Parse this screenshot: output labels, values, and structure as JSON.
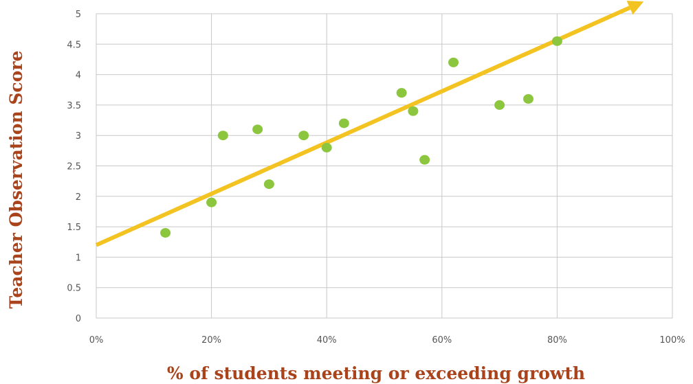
{
  "chart_data": {
    "type": "scatter",
    "title": "",
    "xlabel": "% of students meeting or exceeding growth",
    "ylabel": "Teacher Observation Score",
    "xlim": [
      0,
      100
    ],
    "ylim": [
      0,
      5
    ],
    "x_ticks": [
      0,
      20,
      40,
      60,
      80,
      100
    ],
    "x_tick_labels": [
      "0%",
      "20%",
      "40%",
      "60%",
      "80%",
      "100%"
    ],
    "y_ticks": [
      0,
      0.5,
      1,
      1.5,
      2,
      2.5,
      3,
      3.5,
      4,
      4.5,
      5
    ],
    "y_tick_labels": [
      "0",
      "0.5",
      "1",
      "1.5",
      "2",
      "2.5",
      "3",
      "3.5",
      "4",
      "4.5",
      "5"
    ],
    "grid": true,
    "series": [
      {
        "points": [
          {
            "x": 12,
            "y": 1.4
          },
          {
            "x": 20,
            "y": 1.9
          },
          {
            "x": 22,
            "y": 3.0
          },
          {
            "x": 28,
            "y": 3.1
          },
          {
            "x": 30,
            "y": 2.2
          },
          {
            "x": 36,
            "y": 3.0
          },
          {
            "x": 40,
            "y": 2.8
          },
          {
            "x": 43,
            "y": 3.2
          },
          {
            "x": 53,
            "y": 3.7
          },
          {
            "x": 55,
            "y": 3.4
          },
          {
            "x": 57,
            "y": 2.6
          },
          {
            "x": 62,
            "y": 4.2
          },
          {
            "x": 70,
            "y": 3.5
          },
          {
            "x": 75,
            "y": 3.6
          },
          {
            "x": 80,
            "y": 4.55
          }
        ]
      }
    ],
    "trendline": {
      "x_start": 0,
      "y_start": 1.2,
      "x_end": 95,
      "y_end": 5.2,
      "arrow": true
    },
    "colors": {
      "point": "#8cc63f",
      "trendline": "#f3c322",
      "axis_title": "#a8431b",
      "grid": "#c8c8c8",
      "tick_label": "#555555"
    }
  }
}
